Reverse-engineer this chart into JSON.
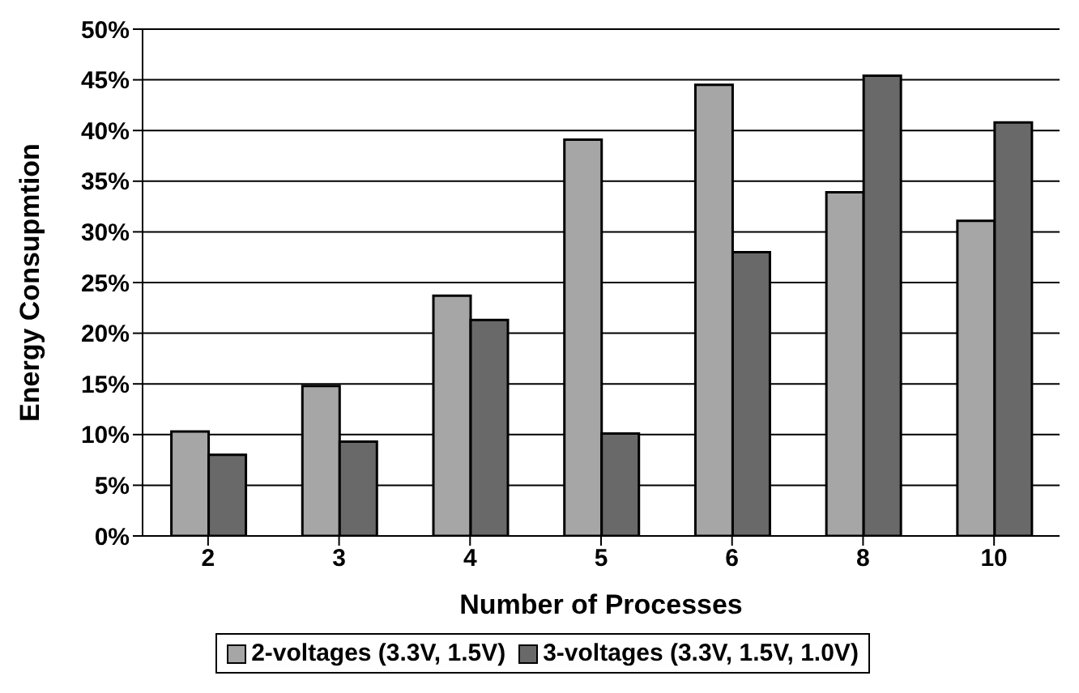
{
  "chart_data": {
    "type": "bar",
    "xlabel": "Number of Processes",
    "ylabel": "Energy Consupmtion",
    "categories": [
      "2",
      "3",
      "4",
      "5",
      "6",
      "8",
      "10"
    ],
    "series": [
      {
        "name": "2-voltages (3.3V, 1.5V)",
        "color": "#a6a6a6",
        "values": [
          10.3,
          14.8,
          23.7,
          39.1,
          44.5,
          33.9,
          31.1
        ]
      },
      {
        "name": "3-voltages (3.3V, 1.5V, 1.0V)",
        "color": "#696969",
        "values": [
          8.0,
          9.3,
          21.3,
          10.1,
          28.0,
          45.4,
          40.8
        ]
      }
    ],
    "ylim": [
      0,
      50
    ],
    "yticks": [
      {
        "value": 0,
        "label": "0%"
      },
      {
        "value": 5,
        "label": "5%"
      },
      {
        "value": 10,
        "label": "10%"
      },
      {
        "value": 15,
        "label": "15%"
      },
      {
        "value": 20,
        "label": "20%"
      },
      {
        "value": 25,
        "label": "25%"
      },
      {
        "value": 30,
        "label": "30%"
      },
      {
        "value": 35,
        "label": "35%"
      },
      {
        "value": 40,
        "label": "40%"
      },
      {
        "value": 45,
        "label": "45%"
      },
      {
        "value": 50,
        "label": "50%"
      }
    ],
    "grid": "y",
    "legend": "bottom"
  }
}
